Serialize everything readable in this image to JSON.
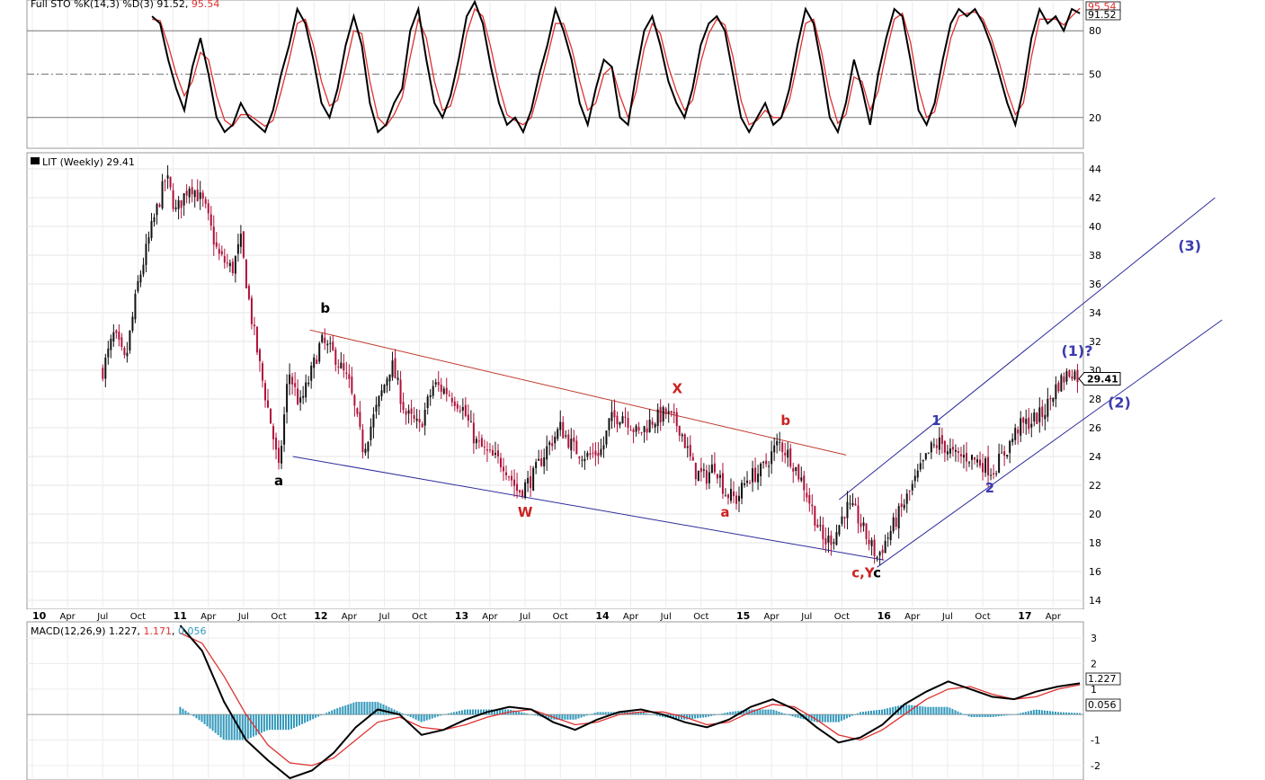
{
  "chart_data": [
    {
      "type": "line",
      "panel": "stochastic",
      "header": {
        "prefix": "Full STO %K(14,3) %D(3)",
        "k_value": "91.52",
        "d_value": "95.54"
      },
      "yticks": [
        "80",
        "50",
        "20"
      ],
      "reference_levels": [
        80,
        50,
        20
      ],
      "ylim": [
        0,
        100
      ],
      "current_labels": {
        "k": "91.52",
        "d": "95.54"
      },
      "series": [
        {
          "name": "%K",
          "color": "#000000",
          "values": [
            90,
            85,
            60,
            40,
            25,
            55,
            75,
            50,
            20,
            10,
            15,
            30,
            20,
            15,
            10,
            25,
            50,
            70,
            95,
            85,
            60,
            30,
            20,
            40,
            70,
            90,
            70,
            30,
            10,
            15,
            30,
            40,
            80,
            95,
            60,
            30,
            20,
            35,
            60,
            90,
            100,
            85,
            55,
            30,
            15,
            20,
            10,
            25,
            50,
            70,
            95,
            80,
            60,
            30,
            15,
            40,
            60,
            55,
            20,
            15,
            50,
            80,
            90,
            70,
            45,
            30,
            20,
            40,
            70,
            85,
            90,
            80,
            50,
            20,
            10,
            20,
            30,
            15,
            20,
            40,
            70,
            95,
            85,
            55,
            20,
            10,
            30,
            60,
            40,
            15,
            50,
            75,
            95,
            90,
            60,
            25,
            15,
            30,
            60,
            85,
            95,
            90,
            95,
            85,
            70,
            50,
            30,
            15,
            40,
            75,
            95,
            85,
            90,
            80,
            95,
            92
          ]
        },
        {
          "name": "%D",
          "color": "#e03030",
          "values": [
            88,
            87,
            70,
            50,
            35,
            45,
            65,
            60,
            35,
            18,
            14,
            22,
            22,
            18,
            14,
            18,
            38,
            60,
            85,
            88,
            70,
            45,
            28,
            32,
            55,
            80,
            78,
            45,
            20,
            14,
            22,
            34,
            62,
            88,
            75,
            45,
            25,
            28,
            48,
            78,
            95,
            90,
            68,
            42,
            22,
            18,
            15,
            20,
            40,
            62,
            85,
            85,
            68,
            45,
            25,
            30,
            50,
            55,
            35,
            20,
            38,
            68,
            85,
            78,
            55,
            38,
            25,
            32,
            58,
            78,
            88,
            84,
            62,
            32,
            15,
            18,
            25,
            20,
            20,
            32,
            58,
            85,
            88,
            65,
            35,
            16,
            22,
            48,
            45,
            25,
            38,
            65,
            88,
            92,
            72,
            40,
            20,
            24,
            48,
            75,
            90,
            92,
            93,
            88,
            75,
            58,
            38,
            22,
            30,
            62,
            88,
            88,
            88,
            84,
            90,
            95.54
          ]
        }
      ]
    },
    {
      "type": "candlestick",
      "panel": "price",
      "title": "LIT (Weekly) 29.41",
      "last_price": "29.41",
      "ylim": [
        13.5,
        45
      ],
      "yticks": [
        "44",
        "42",
        "40",
        "38",
        "36",
        "34",
        "32",
        "30",
        "28",
        "26",
        "24",
        "22",
        "20",
        "18",
        "16",
        "14"
      ],
      "x_labels": [
        "10",
        "Apr",
        "Jul",
        "Oct",
        "11",
        "Apr",
        "Jul",
        "Oct",
        "12",
        "Apr",
        "Jul",
        "Oct",
        "13",
        "Apr",
        "Jul",
        "Oct",
        "14",
        "Apr",
        "Jul",
        "Oct",
        "15",
        "Apr",
        "Jul",
        "Oct",
        "16",
        "Apr",
        "Jul",
        "Oct",
        "17",
        "Apr"
      ],
      "x_years": [
        "10",
        "11",
        "12",
        "13",
        "14",
        "15",
        "16",
        "17"
      ],
      "close_path": [
        [
          2010.5,
          30.0
        ],
        [
          2010.58,
          32.5
        ],
        [
          2010.66,
          30.5
        ],
        [
          2010.75,
          36.0
        ],
        [
          2010.85,
          40.0
        ],
        [
          2010.95,
          43.5
        ],
        [
          2011.02,
          41.0
        ],
        [
          2011.12,
          43.0
        ],
        [
          2011.22,
          41.5
        ],
        [
          2011.32,
          38.0
        ],
        [
          2011.42,
          37.0
        ],
        [
          2011.48,
          39.0
        ],
        [
          2011.55,
          34.0
        ],
        [
          2011.62,
          30.0
        ],
        [
          2011.7,
          26.0
        ],
        [
          2011.75,
          23.0
        ],
        [
          2011.82,
          30.0
        ],
        [
          2011.9,
          27.5
        ],
        [
          2011.97,
          29.5
        ],
        [
          2012.05,
          32.0
        ],
        [
          2012.15,
          31.0
        ],
        [
          2012.25,
          29.0
        ],
        [
          2012.35,
          24.5
        ],
        [
          2012.45,
          27.5
        ],
        [
          2012.55,
          30.5
        ],
        [
          2012.65,
          27.0
        ],
        [
          2012.75,
          26.0
        ],
        [
          2012.85,
          29.0
        ],
        [
          2012.95,
          28.5
        ],
        [
          2013.05,
          27.5
        ],
        [
          2013.15,
          25.0
        ],
        [
          2013.25,
          24.0
        ],
        [
          2013.35,
          23.5
        ],
        [
          2013.45,
          21.5
        ],
        [
          2013.55,
          22.5
        ],
        [
          2013.65,
          24.5
        ],
        [
          2013.75,
          26.0
        ],
        [
          2013.85,
          24.5
        ],
        [
          2013.95,
          24.0
        ],
        [
          2014.05,
          24.5
        ],
        [
          2014.1,
          26.5
        ],
        [
          2014.2,
          27.0
        ],
        [
          2014.3,
          25.5
        ],
        [
          2014.4,
          26.5
        ],
        [
          2014.5,
          27.0
        ],
        [
          2014.6,
          26.0
        ],
        [
          2014.7,
          23.0
        ],
        [
          2014.78,
          22.5
        ],
        [
          2014.85,
          23.5
        ],
        [
          2014.92,
          21.5
        ],
        [
          2015.0,
          21.0
        ],
        [
          2015.08,
          22.5
        ],
        [
          2015.18,
          23.0
        ],
        [
          2015.3,
          25.0
        ],
        [
          2015.38,
          24.0
        ],
        [
          2015.48,
          22.0
        ],
        [
          2015.55,
          20.0
        ],
        [
          2015.62,
          18.0
        ],
        [
          2015.7,
          18.5
        ],
        [
          2015.78,
          20.5
        ],
        [
          2015.85,
          20.0
        ],
        [
          2015.92,
          18.5
        ],
        [
          2016.0,
          17.0
        ],
        [
          2016.08,
          18.5
        ],
        [
          2016.18,
          20.5
        ],
        [
          2016.28,
          22.5
        ],
        [
          2016.38,
          24.5
        ],
        [
          2016.45,
          25.0
        ],
        [
          2016.55,
          24.0
        ],
        [
          2016.65,
          24.0
        ],
        [
          2016.75,
          23.5
        ],
        [
          2016.82,
          23.0
        ],
        [
          2016.92,
          24.5
        ],
        [
          2017.0,
          26.0
        ],
        [
          2017.1,
          26.5
        ],
        [
          2017.18,
          27.0
        ],
        [
          2017.28,
          29.0
        ],
        [
          2017.38,
          30.0
        ],
        [
          2017.44,
          29.41
        ]
      ],
      "trendlines": [
        {
          "name": "upper-red",
          "color": "#c0392b",
          "points": [
            [
              2011.97,
              32.8
            ],
            [
              2015.78,
              24.1
            ]
          ]
        },
        {
          "name": "lower-blue",
          "color": "#2c2c9c",
          "points": [
            [
              2011.85,
              24.0
            ],
            [
              2016.05,
              16.8
            ]
          ]
        },
        {
          "name": "channel-top",
          "color": "#2c2c9c",
          "points": [
            [
              2015.73,
              21.0
            ],
            [
              2018.4,
              42.0
            ]
          ]
        },
        {
          "name": "channel-bottom",
          "color": "#2c2c9c",
          "points": [
            [
              2016.0,
              16.3
            ],
            [
              2018.45,
              33.5
            ]
          ]
        }
      ],
      "annotations": [
        {
          "text": "a",
          "color": "#000000",
          "x": 2011.75,
          "y": 22.0
        },
        {
          "text": "b",
          "color": "#000000",
          "x": 2012.08,
          "y": 34.0
        },
        {
          "text": "W",
          "color": "#cc2222",
          "x": 2013.5,
          "y": 19.8
        },
        {
          "text": "X",
          "color": "#cc2222",
          "x": 2014.58,
          "y": 28.4
        },
        {
          "text": "a",
          "color": "#cc2222",
          "x": 2014.92,
          "y": 19.8
        },
        {
          "text": "b",
          "color": "#cc2222",
          "x": 2015.35,
          "y": 26.2
        },
        {
          "text": "c,Y",
          "color": "#cc2222",
          "x": 2015.9,
          "y": 15.6
        },
        {
          "text": "c",
          "color": "#000000",
          "x": 2016.0,
          "y": 15.6
        },
        {
          "text": "1",
          "color": "#3b3bb0",
          "x": 2016.42,
          "y": 26.2
        },
        {
          "text": "2",
          "color": "#3b3bb0",
          "x": 2016.8,
          "y": 21.5
        },
        {
          "text": "(1)?",
          "color": "#3b3bb0",
          "x": 2017.42,
          "y": 31.0
        },
        {
          "text": "(2)",
          "color": "#3b3bb0",
          "x": 2017.72,
          "y": 27.4
        },
        {
          "text": "(3)",
          "color": "#3b3bb0",
          "x": 2018.22,
          "y": 38.3
        }
      ]
    },
    {
      "type": "line",
      "panel": "macd",
      "header": {
        "prefix": "MACD(12,26,9)",
        "macd_value": "1.227",
        "signal_value": "1.171",
        "hist_value": "0.056"
      },
      "yticks": [
        "3",
        "2",
        "1",
        "-1",
        "-2"
      ],
      "ylim": [
        -2.5,
        3.5
      ],
      "current_labels": {
        "macd": "1.227",
        "hist": "0.056"
      },
      "series": [
        {
          "name": "MACD",
          "color": "#000000",
          "values": [
            3.5,
            2.5,
            0.5,
            -1.0,
            -1.8,
            -2.5,
            -2.2,
            -1.5,
            -0.5,
            0.2,
            0.0,
            -0.8,
            -0.6,
            -0.2,
            0.1,
            0.3,
            0.2,
            -0.3,
            -0.6,
            -0.2,
            0.1,
            0.2,
            0.0,
            -0.3,
            -0.5,
            -0.2,
            0.3,
            0.6,
            0.2,
            -0.5,
            -1.1,
            -0.9,
            -0.4,
            0.4,
            0.9,
            1.3,
            1.0,
            0.7,
            0.6,
            0.9,
            1.1,
            1.227
          ]
        },
        {
          "name": "Signal",
          "color": "#e03030",
          "values": [
            3.2,
            2.8,
            1.5,
            0.0,
            -1.2,
            -1.9,
            -2.0,
            -1.7,
            -1.0,
            -0.3,
            -0.1,
            -0.5,
            -0.6,
            -0.4,
            -0.1,
            0.1,
            0.2,
            -0.1,
            -0.4,
            -0.3,
            0.0,
            0.1,
            0.1,
            -0.1,
            -0.4,
            -0.3,
            0.1,
            0.4,
            0.3,
            -0.2,
            -0.8,
            -1.0,
            -0.6,
            0.0,
            0.6,
            1.0,
            1.1,
            0.8,
            0.6,
            0.7,
            1.0,
            1.171
          ]
        },
        {
          "name": "Histogram",
          "color": "#3399bb",
          "values": [
            0.3,
            -0.3,
            -1.0,
            -1.0,
            -0.6,
            -0.6,
            -0.2,
            0.2,
            0.5,
            0.5,
            0.1,
            -0.3,
            0.0,
            0.2,
            0.2,
            0.2,
            0.0,
            -0.2,
            -0.2,
            0.1,
            0.1,
            0.1,
            -0.1,
            -0.2,
            -0.1,
            0.1,
            0.2,
            0.2,
            -0.1,
            -0.3,
            -0.3,
            0.1,
            0.2,
            0.4,
            0.3,
            0.3,
            -0.1,
            -0.1,
            0.0,
            0.2,
            0.1,
            0.056
          ]
        }
      ]
    }
  ]
}
